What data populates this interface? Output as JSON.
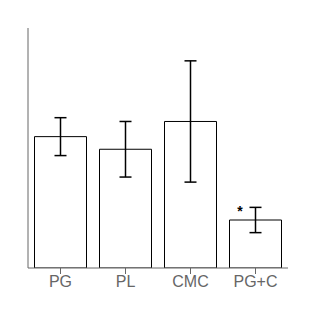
{
  "chart_data": {
    "type": "bar",
    "categories": [
      "PG",
      "PL",
      "CMC",
      "PG+C"
    ],
    "values": [
      5.2,
      4.7,
      5.8,
      1.9
    ],
    "errors": [
      0.75,
      1.1,
      2.4,
      0.5
    ],
    "colors": [
      "white",
      "white",
      "white",
      "white"
    ],
    "ylim": [
      0,
      9.5
    ],
    "tick_labels": "x",
    "grid": false,
    "annotations": [
      {
        "text": "*",
        "category": "PG+C"
      }
    ]
  }
}
